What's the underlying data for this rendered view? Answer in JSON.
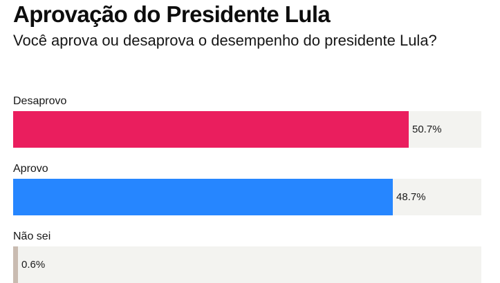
{
  "header": {
    "title": "Aprovação do Presidente Lula",
    "subtitle": "Você aprova ou desaprova o desempenho do presidente Lula?"
  },
  "rows": [
    {
      "label": "Desaprovo",
      "value_label": "50.7%",
      "value": 50.7,
      "color": "#ea1e5e"
    },
    {
      "label": "Aprovo",
      "value_label": "48.7%",
      "value": 48.7,
      "color": "#2686ff"
    },
    {
      "label": "Não sei",
      "value_label": "0.6%",
      "value": 0.6,
      "color": "#c9bbb1"
    }
  ],
  "chart_data": {
    "type": "bar",
    "orientation": "horizontal",
    "title": "Aprovação do Presidente Lula",
    "subtitle": "Você aprova ou desaprova o desempenho do presidente Lula?",
    "categories": [
      "Desaprovo",
      "Aprovo",
      "Não sei"
    ],
    "values": [
      50.7,
      48.7,
      0.6
    ],
    "unit": "%",
    "colors": [
      "#ea1e5e",
      "#2686ff",
      "#c9bbb1"
    ],
    "xlabel": "",
    "ylabel": "",
    "xlim": [
      0,
      60
    ],
    "grid": false,
    "legend": false
  }
}
